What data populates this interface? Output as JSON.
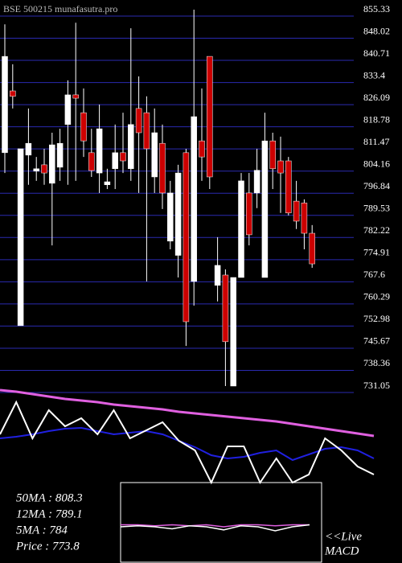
{
  "chart_data": {
    "type": "candlestick",
    "title": "BSE 500215 munafasutra.pro",
    "ylim": [
      731.05,
      855.33
    ],
    "yticks": [
      855.33,
      848.02,
      840.71,
      833.4,
      826.09,
      818.78,
      811.47,
      804.16,
      796.84,
      789.53,
      782.22,
      774.91,
      767.6,
      760.29,
      752.98,
      745.67,
      738.36,
      731.05
    ],
    "up_color": "#ffffff",
    "down_color": "#cc0000",
    "grid_color": "#2a2ab0",
    "open": [
      808.1,
      828.5,
      751.0,
      807.3,
      802.0,
      804.1,
      798.0,
      803.3,
      817.4,
      827.2,
      821.3,
      808.1,
      801.4,
      797.5,
      802.8,
      808.1,
      802.8,
      822.7,
      821.3,
      800.1,
      811.2,
      778.9,
      774.2,
      808.1,
      765.6,
      812.0,
      839.9,
      764.3,
      767.7,
      731.05,
      766.9,
      794.8,
      794.8,
      766.9,
      812.0,
      805.4,
      805.4,
      792.1,
      791.5,
      781.5
    ],
    "high": [
      850.5,
      837.3,
      809.4,
      822.7,
      806.7,
      809.4,
      814.7,
      816.0,
      832.0,
      851.0,
      829.3,
      816.0,
      824.0,
      802.8,
      817.4,
      821.3,
      849.2,
      833.3,
      826.7,
      822.7,
      817.4,
      798.8,
      804.1,
      809.4,
      855.33,
      829.3,
      839.9,
      780.2,
      769.6,
      766.9,
      801.4,
      801.4,
      809.4,
      821.3,
      814.7,
      813.4,
      806.7,
      798.8,
      792.7,
      784.2
    ],
    "low": [
      801.4,
      822.7,
      751.0,
      797.5,
      798.8,
      797.5,
      777.5,
      798.8,
      797.5,
      798.8,
      806.7,
      800.1,
      794.8,
      796.1,
      796.1,
      801.4,
      798.8,
      794.8,
      765.6,
      794.8,
      789.5,
      776.2,
      766.9,
      744.3,
      757.6,
      798.8,
      796.1,
      759.0,
      731.05,
      731.05,
      766.9,
      777.5,
      789.8,
      766.9,
      796.1,
      788.2,
      787.4,
      782.9,
      776.2,
      770.1
    ],
    "close": [
      839.9,
      826.7,
      809.4,
      811.2,
      802.8,
      801.4,
      810.7,
      811.2,
      827.2,
      826.1,
      812.0,
      802.2,
      816.0,
      798.5,
      808.1,
      805.4,
      817.4,
      814.7,
      809.4,
      814.7,
      794.8,
      794.8,
      801.4,
      752.3,
      820.0,
      806.7,
      800.1,
      770.9,
      745.7,
      766.9,
      798.8,
      781.0,
      802.3,
      812.0,
      802.8,
      801.4,
      788.2,
      785.5,
      781.5,
      771.4
    ],
    "indicator": {
      "ylim": [
        0,
        100
      ],
      "series": [
        {
          "color": "#e060e0",
          "values": [
            95.8,
            94.2,
            91.7,
            89.2,
            86.7,
            85,
            83.3,
            80.8,
            79.2,
            77.5,
            75.8,
            73.3,
            71.7,
            70,
            68.3,
            66.7,
            65,
            63.3,
            60.8,
            58.3,
            55.8,
            53.3,
            50.8,
            48.3
          ]
        },
        {
          "color": "#2020e0",
          "values": [
            45.8,
            47.5,
            50,
            53.3,
            55.8,
            56.7,
            53.3,
            50,
            51.7,
            53.3,
            50,
            43.3,
            36.7,
            28.3,
            25,
            26.7,
            30.8,
            33.3,
            23.3,
            29.2,
            35,
            36.7,
            33.3,
            25
          ]
        },
        {
          "color": "#ffffff",
          "values": [
            50,
            83.3,
            45.8,
            75,
            58.3,
            66.7,
            50,
            75,
            45.8,
            54.2,
            62.5,
            43.3,
            33.3,
            0,
            37.5,
            37.5,
            0,
            25,
            0,
            8.3,
            45.8,
            33.3,
            16.7,
            8.3
          ]
        }
      ]
    },
    "macd": {
      "ylim": [
        -1,
        1
      ],
      "label1": "<<Live",
      "label2": "MACD",
      "series": [
        {
          "color": "#e060e0",
          "values": [
            0.1,
            0.1,
            0.05,
            0.1,
            0.05,
            0.1,
            0,
            0.1,
            0.1,
            0.05,
            0.1,
            0.1
          ]
        },
        {
          "color": "#ffffff",
          "values": [
            0,
            0.05,
            0,
            -0.1,
            0.05,
            0,
            -0.15,
            0.05,
            0,
            -0.2,
            0,
            0.1
          ]
        }
      ]
    },
    "info": [
      "50MA : 808.3",
      "12MA : 789.1",
      "5MA : 784",
      "Price   : 773.8"
    ]
  }
}
